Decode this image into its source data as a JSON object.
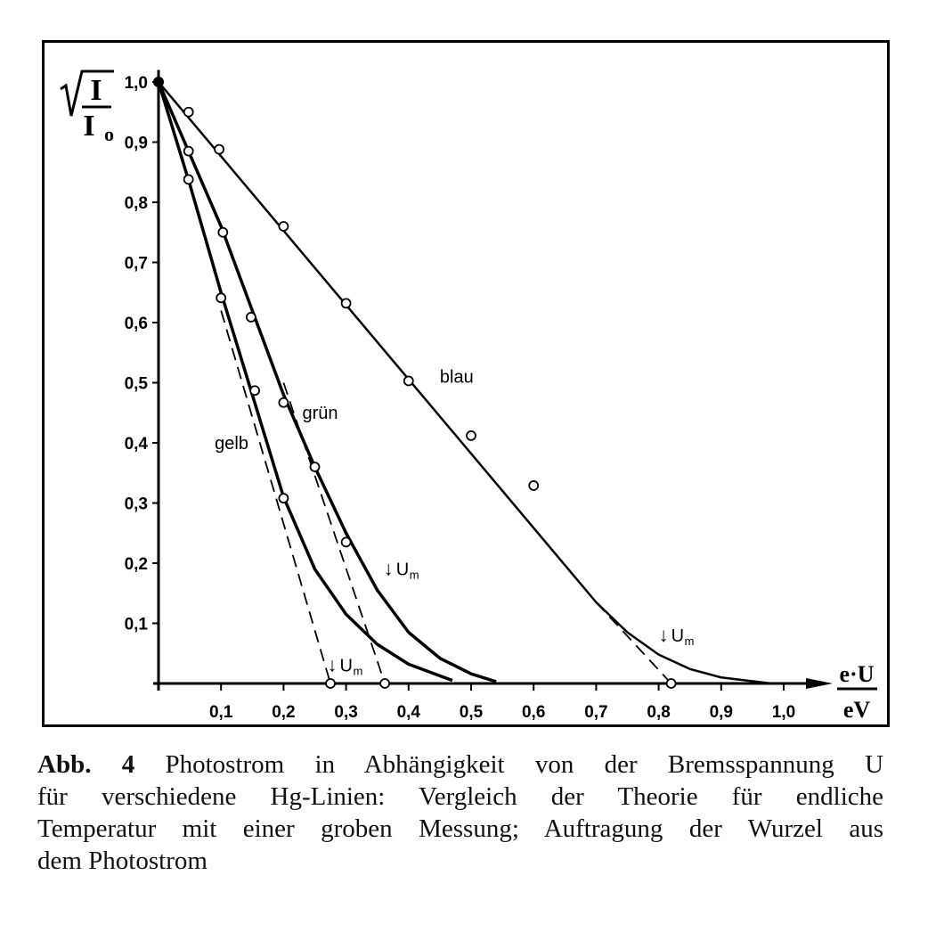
{
  "chart_data": {
    "type": "line",
    "title": "",
    "ylabel": {
      "numerator": "I",
      "denominator": "I",
      "denominator_sub": "o",
      "root": "√"
    },
    "xlabel": {
      "numerator": "e·U",
      "denominator": "eV"
    },
    "xlim": [
      0,
      1.05
    ],
    "ylim": [
      0,
      1.0
    ],
    "x_ticks": [
      "0,1",
      "0,2",
      "0,3",
      "0,4",
      "0,5",
      "0,6",
      "0,7",
      "0,8",
      "0,9",
      "1,0"
    ],
    "x_tick_values": [
      0.1,
      0.2,
      0.3,
      0.4,
      0.5,
      0.6,
      0.7,
      0.8,
      0.9,
      1.0
    ],
    "y_ticks": [
      "0,1",
      "0,2",
      "0,3",
      "0,4",
      "0,5",
      "0,6",
      "0,7",
      "0,8",
      "0,9",
      "1,0"
    ],
    "y_tick_values": [
      0.1,
      0.2,
      0.3,
      0.4,
      0.5,
      0.6,
      0.7,
      0.8,
      0.9,
      1.0
    ],
    "grid": false,
    "series": [
      {
        "name": "blau",
        "label_pos": [
          0.45,
          0.5
        ],
        "points": [
          [
            0,
            1.0
          ],
          [
            0.048,
            0.95
          ],
          [
            0.097,
            0.888
          ],
          [
            0.2,
            0.76
          ],
          [
            0.3,
            0.632
          ],
          [
            0.4,
            0.503
          ],
          [
            0.5,
            0.412
          ],
          [
            0.6,
            0.329
          ],
          [
            0.82,
            0.0
          ]
        ],
        "theory": [
          [
            0,
            1.0
          ],
          [
            0.7,
            0.135
          ],
          [
            0.75,
            0.085
          ],
          [
            0.8,
            0.048
          ],
          [
            0.85,
            0.024
          ],
          [
            0.9,
            0.01
          ],
          [
            0.98,
            0.0
          ]
        ],
        "dashed": [
          [
            0.7,
            0.135
          ],
          [
            0.82,
            0.0
          ]
        ],
        "um_label": "U",
        "um_sub": "m",
        "um_pos": [
          0.8,
          0.07
        ]
      },
      {
        "name": "grün",
        "label_pos": [
          0.23,
          0.44
        ],
        "points": [
          [
            0.048,
            0.885
          ],
          [
            0.103,
            0.75
          ],
          [
            0.148,
            0.609
          ],
          [
            0.2,
            0.467
          ],
          [
            0.25,
            0.36
          ],
          [
            0.3,
            0.235
          ],
          [
            0.362,
            0.0
          ]
        ],
        "theory": [
          [
            0,
            1.0
          ],
          [
            0.1,
            0.76
          ],
          [
            0.2,
            0.48
          ],
          [
            0.25,
            0.36
          ],
          [
            0.3,
            0.25
          ],
          [
            0.35,
            0.155
          ],
          [
            0.4,
            0.085
          ],
          [
            0.45,
            0.042
          ],
          [
            0.5,
            0.016
          ],
          [
            0.54,
            0.003
          ]
        ],
        "dashed": [
          [
            0.2,
            0.5
          ],
          [
            0.362,
            0.0
          ]
        ],
        "um_label": "U",
        "um_sub": "m",
        "um_pos": [
          0.36,
          0.18
        ]
      },
      {
        "name": "gelb",
        "label_pos": [
          0.09,
          0.39
        ],
        "points": [
          [
            0.048,
            0.838
          ],
          [
            0.1,
            0.641
          ],
          [
            0.154,
            0.487
          ],
          [
            0.2,
            0.308
          ],
          [
            0.275,
            0.0
          ]
        ],
        "theory": [
          [
            0,
            1.0
          ],
          [
            0.05,
            0.83
          ],
          [
            0.1,
            0.65
          ],
          [
            0.15,
            0.48
          ],
          [
            0.2,
            0.31
          ],
          [
            0.25,
            0.19
          ],
          [
            0.3,
            0.115
          ],
          [
            0.35,
            0.065
          ],
          [
            0.4,
            0.032
          ],
          [
            0.47,
            0.005
          ]
        ],
        "dashed": [
          [
            0.1,
            0.62
          ],
          [
            0.275,
            0.0
          ]
        ],
        "um_label": "U",
        "um_sub": "m",
        "um_pos": [
          0.27,
          0.02
        ]
      }
    ]
  },
  "caption": {
    "label": "Abb. 4",
    "lines": [
      "Photostrom in Abhängigkeit von der Bremsspannung U",
      "für verschiedene Hg-Linien: Vergleich der Theorie für endliche",
      "Temperatur mit einer groben Messung; Auftragung der Wurzel aus",
      "dem Photostrom"
    ]
  }
}
